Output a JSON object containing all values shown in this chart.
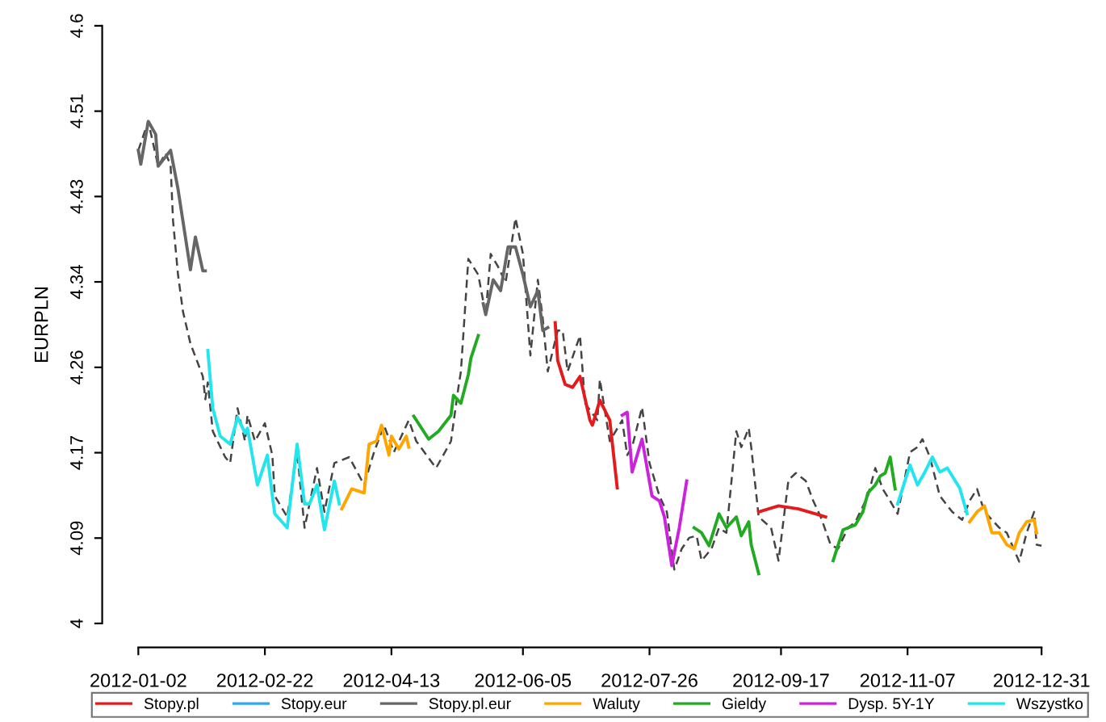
{
  "chart_data": {
    "type": "line",
    "ylabel": "EURPLN",
    "xlim": [
      "2012-01-02",
      "2012-12-31"
    ],
    "ylim": [
      4,
      4.6
    ],
    "xticks": [
      "2012-01-02",
      "2012-02-22",
      "2012-04-13",
      "2012-06-05",
      "2012-07-26",
      "2012-09-17",
      "2012-11-07",
      "2012-12-31"
    ],
    "yticks": [
      4,
      {
        "value": 4.0857,
        "label": "4.09"
      },
      {
        "value": 4.1714,
        "label": "4.17"
      },
      {
        "value": 4.2571,
        "label": "4.26"
      },
      {
        "value": 4.3429,
        "label": "4.34"
      },
      {
        "value": 4.4286,
        "label": "4.43"
      },
      {
        "value": 4.5143,
        "label": "4.51"
      },
      4.6
    ],
    "legend": "bottom",
    "series": [
      {
        "color": "#444444",
        "line_style": "dashed",
        "x": [
          "2012-01-02",
          "2012-01-06",
          "2012-01-10",
          "2012-01-13",
          "2012-01-15",
          "2012-01-16",
          "2012-01-18",
          "2012-01-20",
          "2012-01-23",
          "2012-01-28",
          "2012-01-29",
          "2012-01-30",
          "2012-02-01",
          "2012-02-06",
          "2012-02-08",
          "2012-02-11",
          "2012-02-14",
          "2012-02-15",
          "2012-02-18",
          "2012-02-22",
          "2012-02-25",
          "2012-02-26",
          "2012-03-02",
          "2012-03-06",
          "2012-03-09",
          "2012-03-14",
          "2012-03-17",
          "2012-03-21",
          "2012-03-27",
          "2012-04-02",
          "2012-04-06",
          "2012-04-10",
          "2012-04-14",
          "2012-04-20",
          "2012-04-23",
          "2012-05-01",
          "2012-05-07",
          "2012-05-10",
          "2012-05-11",
          "2012-05-14",
          "2012-05-18",
          "2012-05-21",
          "2012-05-23",
          "2012-05-26",
          "2012-05-29",
          "2012-06-02",
          "2012-06-05",
          "2012-06-08",
          "2012-06-11",
          "2012-06-13",
          "2012-06-15",
          "2012-06-19",
          "2012-06-21",
          "2012-06-23",
          "2012-06-28",
          "2012-06-30",
          "2012-07-05",
          "2012-07-06",
          "2012-07-10",
          "2012-07-15",
          "2012-07-17",
          "2012-07-19",
          "2012-07-23",
          "2012-07-26",
          "2012-07-30",
          "2012-08-02",
          "2012-08-05",
          "2012-08-08",
          "2012-08-11",
          "2012-08-14",
          "2012-08-16",
          "2012-08-20",
          "2012-08-23",
          "2012-08-26",
          "2012-08-30",
          "2012-09-01",
          "2012-09-04",
          "2012-09-05",
          "2012-09-08",
          "2012-09-13",
          "2012-09-16",
          "2012-09-20",
          "2012-09-23",
          "2012-09-27",
          "2012-09-30",
          "2012-10-03",
          "2012-10-07",
          "2012-10-10",
          "2012-10-14",
          "2012-10-17",
          "2012-10-22",
          "2012-10-25",
          "2012-10-28",
          "2012-10-31",
          "2012-11-03",
          "2012-11-08",
          "2012-11-11",
          "2012-11-13",
          "2012-11-16",
          "2012-11-20",
          "2012-11-25",
          "2012-11-29",
          "2012-12-02",
          "2012-12-05",
          "2012-12-08",
          "2012-12-14",
          "2012-12-17",
          "2012-12-22",
          "2012-12-25",
          "2012-12-28",
          "2012-12-29",
          "2012-12-31"
        ],
        "values": [
          4.475,
          4.504,
          4.459,
          4.472,
          4.46,
          4.404,
          4.35,
          4.313,
          4.281,
          4.248,
          4.225,
          4.242,
          4.193,
          4.167,
          4.161,
          4.216,
          4.183,
          4.209,
          4.183,
          4.201,
          4.169,
          4.128,
          4.107,
          4.172,
          4.096,
          4.156,
          4.112,
          4.161,
          4.167,
          4.139,
          4.172,
          4.199,
          4.172,
          4.204,
          4.183,
          4.156,
          4.183,
          4.237,
          4.253,
          4.366,
          4.35,
          4.31,
          4.371,
          4.358,
          4.342,
          4.407,
          4.371,
          4.269,
          4.345,
          4.306,
          4.253,
          4.294,
          4.294,
          4.253,
          4.289,
          4.221,
          4.204,
          4.245,
          4.183,
          4.204,
          4.169,
          4.177,
          4.217,
          4.161,
          4.128,
          4.112,
          4.054,
          4.075,
          4.086,
          4.088,
          4.063,
          4.075,
          4.096,
          4.091,
          4.193,
          4.177,
          4.196,
          4.177,
          4.107,
          4.096,
          4.063,
          4.144,
          4.151,
          4.143,
          4.123,
          4.107,
          4.079,
          4.075,
          4.096,
          4.102,
          4.128,
          4.156,
          4.135,
          4.123,
          4.11,
          4.172,
          4.177,
          4.185,
          4.167,
          4.128,
          4.112,
          4.104,
          4.123,
          4.135,
          4.112,
          4.096,
          4.091,
          4.062,
          4.091,
          4.112,
          4.079,
          4.078
        ]
      },
      {
        "name": "Stopy.pl",
        "color": "#e41a1c",
        "x": [
          "2012-06-18",
          "2012-06-19",
          "2012-06-22",
          "2012-06-25",
          "2012-06-28",
          "2012-07-02",
          "2012-07-03",
          "2012-07-06",
          "2012-07-10",
          "2012-07-13",
          "2012-08-15",
          "2012-09-08",
          "2012-09-16",
          "2012-09-24",
          "2012-10-01",
          "2012-10-05"
        ],
        "values": [
          4.302,
          4.264,
          4.24,
          4.237,
          4.248,
          4.204,
          4.199,
          4.224,
          4.204,
          4.136,
          null,
          4.112,
          4.118,
          4.115,
          4.11,
          4.107
        ]
      },
      {
        "name": "Stopy.eur",
        "color": "#33a6f0"
      },
      {
        "name": "Stopy.pl.eur",
        "color": "#666666",
        "x": [
          "2012-01-02",
          "2012-01-03",
          "2012-01-06",
          "2012-01-09",
          "2012-01-10",
          "2012-01-15",
          "2012-01-18",
          "2012-01-23",
          "2012-01-25",
          "2012-01-28",
          "2012-01-29",
          "2012-04-01",
          "2012-05-20",
          "2012-05-21",
          "2012-05-24",
          "2012-05-27",
          "2012-05-30",
          "2012-06-02",
          "2012-06-05",
          "2012-06-08",
          "2012-06-11",
          "2012-06-13",
          "2012-06-15"
        ],
        "values": [
          4.475,
          4.461,
          4.504,
          4.491,
          4.459,
          4.475,
          4.436,
          4.355,
          4.388,
          4.354,
          4.354,
          null,
          4.321,
          4.31,
          4.345,
          4.334,
          4.378,
          4.378,
          4.35,
          4.318,
          4.334,
          4.294,
          4.297
        ]
      },
      {
        "name": "Waluty",
        "color": "#ffa500",
        "x": [
          "2012-03-24",
          "2012-03-28",
          "2012-04-02",
          "2012-04-04",
          "2012-04-07",
          "2012-04-09",
          "2012-04-12",
          "2012-04-13",
          "2012-04-16",
          "2012-04-19",
          "2012-04-20",
          "2012-08-01",
          "2012-12-02",
          "2012-12-05",
          "2012-12-08",
          "2012-12-11",
          "2012-12-14",
          "2012-12-17",
          "2012-12-20",
          "2012-12-22",
          "2012-12-25",
          "2012-12-28",
          "2012-12-29"
        ],
        "values": [
          4.115,
          4.135,
          4.131,
          4.18,
          4.183,
          4.199,
          4.169,
          4.188,
          4.175,
          4.188,
          4.177,
          null,
          4.102,
          4.112,
          4.118,
          4.091,
          4.091,
          4.079,
          4.075,
          4.091,
          4.102,
          4.104,
          4.091
        ]
      },
      {
        "name": "Gieldy",
        "color": "#22aa22",
        "x": [
          "2012-04-22",
          "2012-04-28",
          "2012-05-02",
          "2012-05-07",
          "2012-05-08",
          "2012-05-11",
          "2012-05-14",
          "2012-05-15",
          "2012-05-18",
          "2012-06-20",
          "2012-08-13",
          "2012-08-16",
          "2012-08-19",
          "2012-08-23",
          "2012-08-26",
          "2012-08-30",
          "2012-09-01",
          "2012-09-04",
          "2012-09-05",
          "2012-09-08",
          "2012-09-25",
          "2012-10-08",
          "2012-10-12",
          "2012-10-17",
          "2012-10-20",
          "2012-10-22",
          "2012-10-25",
          "2012-10-27",
          "2012-10-29",
          "2012-10-31",
          "2012-11-02"
        ],
        "values": [
          4.208,
          4.185,
          4.193,
          4.209,
          4.229,
          4.221,
          4.25,
          4.266,
          4.289,
          null,
          4.096,
          4.091,
          4.078,
          4.11,
          4.096,
          4.107,
          4.088,
          4.102,
          4.079,
          4.05,
          null,
          4.063,
          4.094,
          4.099,
          4.112,
          4.131,
          4.139,
          4.148,
          4.151,
          4.167,
          4.135
        ]
      },
      {
        "name": "Dysp. 5Y-1Y",
        "color": "#cc22dd",
        "x": [
          "2012-07-15",
          "2012-07-17",
          "2012-07-19",
          "2012-07-22",
          "2012-07-23",
          "2012-07-27",
          "2012-07-30",
          "2012-08-01",
          "2012-08-04",
          "2012-08-07",
          "2012-08-10"
        ],
        "values": [
          4.209,
          4.212,
          4.152,
          4.177,
          4.185,
          4.128,
          4.123,
          4.107,
          4.058,
          4.096,
          4.143
        ]
      },
      {
        "name": "Wszystko",
        "color": "#22e5ee",
        "x": [
          "2012-01-30",
          "2012-02-01",
          "2012-02-04",
          "2012-02-08",
          "2012-02-11",
          "2012-02-14",
          "2012-02-15",
          "2012-02-19",
          "2012-02-23",
          "2012-02-25",
          "2012-02-26",
          "2012-03-02",
          "2012-03-06",
          "2012-03-09",
          "2012-03-11",
          "2012-03-14",
          "2012-03-17",
          "2012-03-21",
          "2012-03-23",
          "2012-07-01",
          "2012-11-03",
          "2012-11-08",
          "2012-11-11",
          "2012-11-14",
          "2012-11-17",
          "2012-11-20",
          "2012-11-23",
          "2012-11-28",
          "2012-12-01"
        ],
        "values": [
          4.274,
          4.216,
          4.188,
          4.18,
          4.207,
          4.191,
          4.196,
          4.139,
          4.169,
          4.128,
          4.11,
          4.096,
          4.18,
          4.12,
          4.12,
          4.139,
          4.094,
          4.143,
          4.12,
          null,
          4.12,
          4.159,
          4.139,
          4.152,
          4.167,
          4.152,
          4.156,
          4.136,
          4.11
        ]
      }
    ]
  }
}
